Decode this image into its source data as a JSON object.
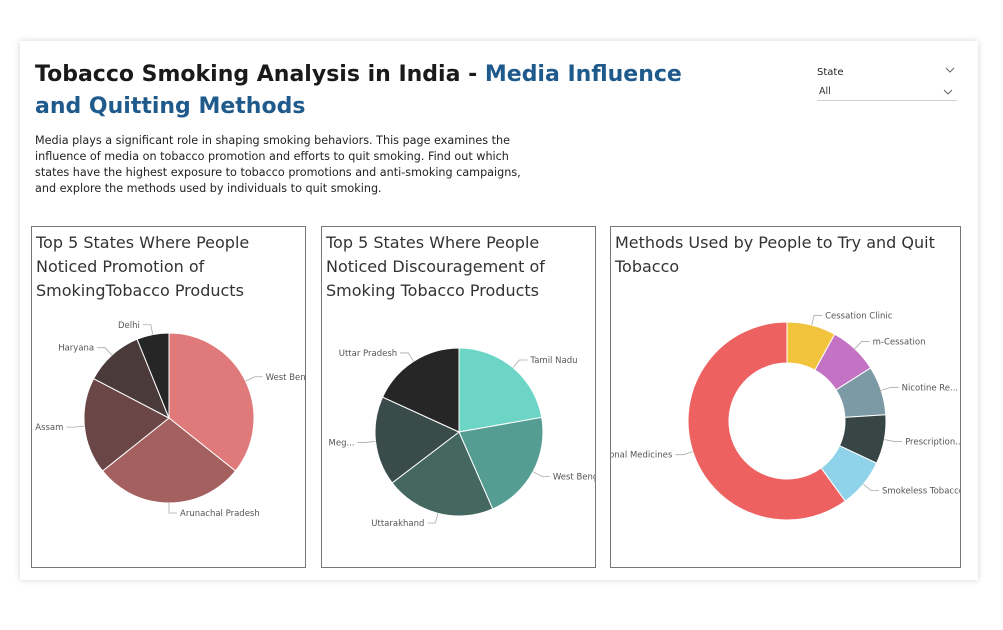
{
  "header": {
    "title_part1": "Tobacco Smoking Analysis in India - ",
    "title_part2": "Media Influence and Quitting Methods",
    "description": "Media plays a significant role in shaping smoking behaviors. This page examines the influence of media on tobacco promotion and efforts to quit smoking. Find out which states have the highest exposure to tobacco promotions and anti-smoking campaigns, and explore the methods used by individuals to quit smoking."
  },
  "slicer": {
    "label": "State",
    "value": "All"
  },
  "icons": {
    "chevron": "chevron-down-icon"
  },
  "chart_data": [
    {
      "type": "pie",
      "title": "Top 5 States Where People Noticed Promotion of SmokingTobacco Products",
      "labels": [
        "West Bengal",
        "Arunachal Pradesh",
        "Assam",
        "Haryana",
        "Delhi"
      ],
      "values": [
        35,
        28,
        18,
        11,
        6
      ],
      "colors": [
        "#e07a7a",
        "#a45f5f",
        "#6b4646",
        "#4a3a3a",
        "#262626"
      ]
    },
    {
      "type": "pie",
      "title": "Top 5 States Where People Noticed Discouragement of Smoking Tobacco Products",
      "labels": [
        "Tamil Nadu",
        "West Bengal",
        "Uttarakhand",
        "Meg...",
        "Uttar Pradesh"
      ],
      "values": [
        22,
        21,
        21,
        17,
        18
      ],
      "colors": [
        "#6dd5c5",
        "#559d92",
        "#44685f",
        "#3a4c4a",
        "#262626"
      ]
    },
    {
      "type": "pie",
      "title": "Methods Used by People to Try and Quit Tobacco",
      "donut": true,
      "labels": [
        "Cessation Clinic",
        "m-Cessation",
        "Nicotine Re...",
        "Prescription...",
        "Smokeless Tobacco",
        "Traditional Medicines"
      ],
      "values": [
        8,
        8,
        8,
        8,
        8,
        60
      ],
      "colors": [
        "#f2c43d",
        "#c472c4",
        "#7b9aa5",
        "#374645",
        "#8fd3ea",
        "#ee6161"
      ]
    }
  ]
}
